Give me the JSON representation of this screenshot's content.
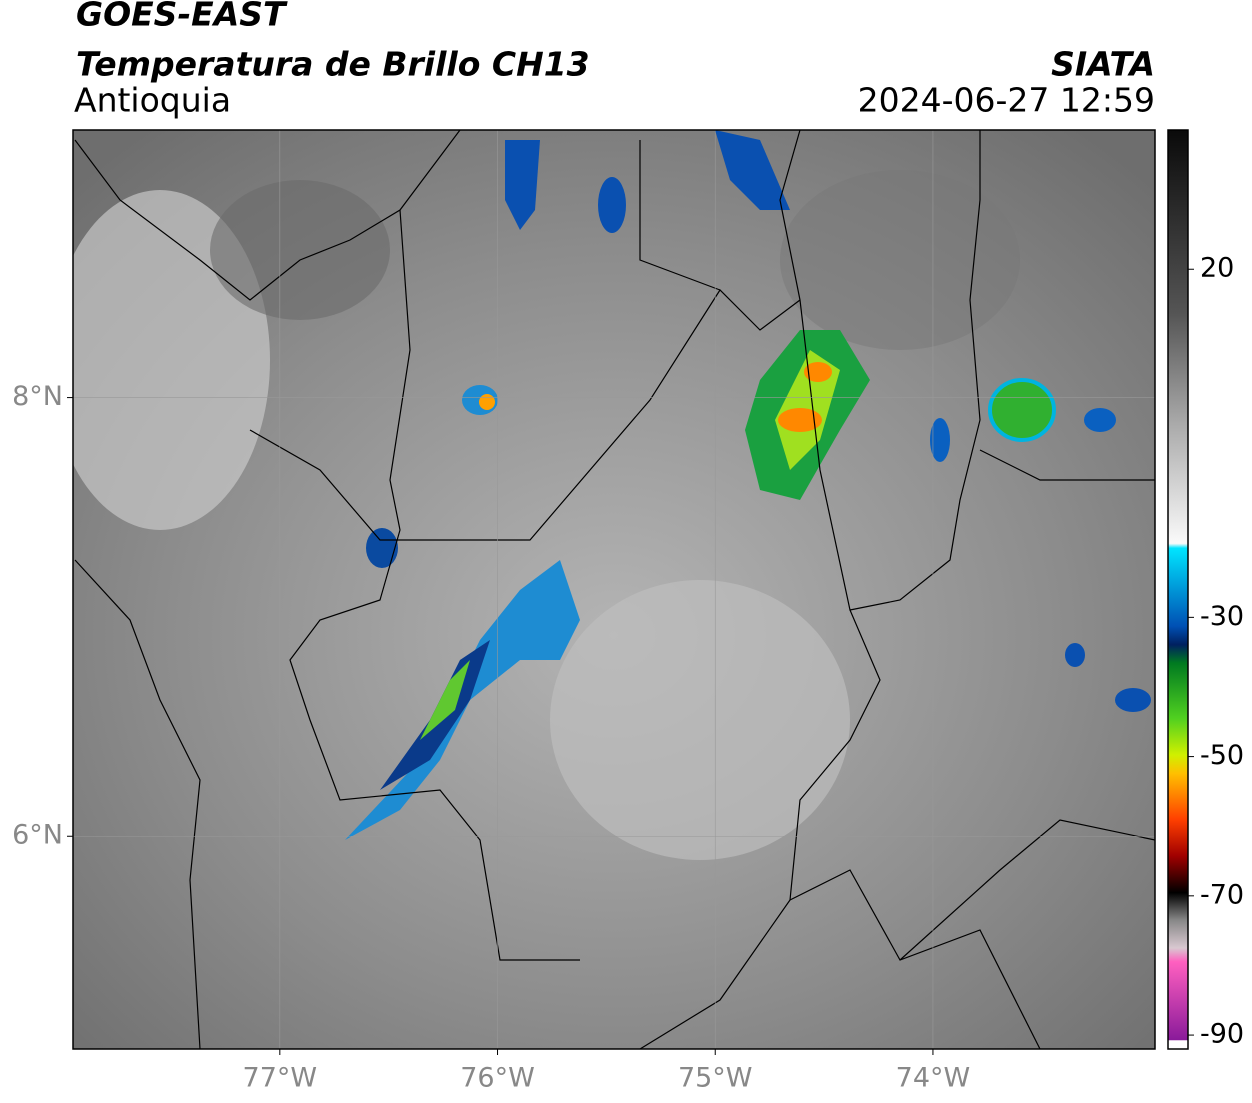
{
  "header": {
    "title": "GOES-EAST",
    "subtitle": "Temperatura de Brillo CH13",
    "region": "Antioquia",
    "source": "SIATA",
    "datetime": "2024-06-27 12:59"
  },
  "map": {
    "xlim": [
      -77.95,
      -72.98
    ],
    "ylim": [
      5.03,
      9.22
    ],
    "xticks": [
      {
        "value": -77,
        "label": "77°W"
      },
      {
        "value": -76,
        "label": "76°W"
      },
      {
        "value": -75,
        "label": "75°W"
      },
      {
        "value": -74,
        "label": "74°W"
      }
    ],
    "yticks": [
      {
        "value": 6,
        "label": "6°N"
      },
      {
        "value": 8,
        "label": "8°N"
      }
    ],
    "grid": true
  },
  "colorbar": {
    "lim": [
      -92,
      40
    ],
    "ticks": [
      20,
      -30,
      -50,
      -70,
      -90
    ]
  }
}
